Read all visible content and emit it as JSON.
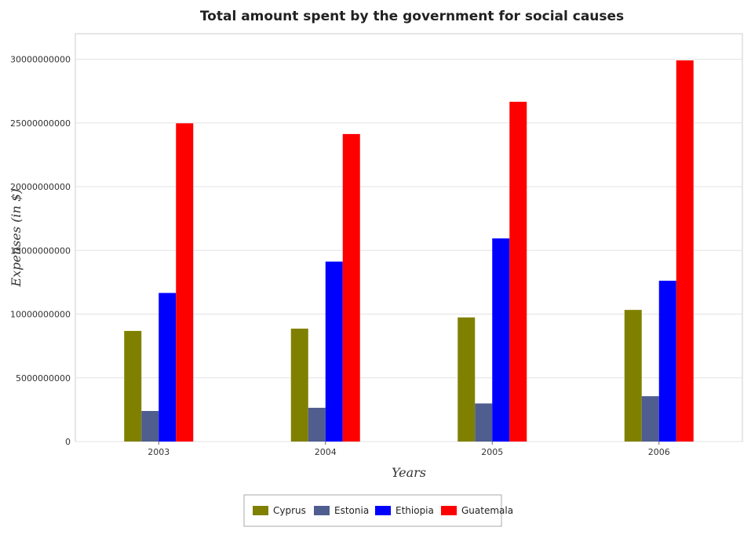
{
  "chart_data": {
    "type": "bar",
    "title": "Total amount spent by the government for social causes",
    "xlabel": "Years",
    "ylabel": "Expenses (in $)",
    "categories": [
      "2003",
      "2004",
      "2005",
      "2006"
    ],
    "ylim": [
      0,
      32000000000
    ],
    "yticks": [
      0,
      5000000000,
      10000000000,
      15000000000,
      20000000000,
      25000000000,
      30000000000
    ],
    "ytick_labels": [
      "0",
      "5000000000",
      "10000000000",
      "15000000000",
      "20000000000",
      "25000000000",
      "30000000000"
    ],
    "grid": true,
    "legend_position": "bottom-center",
    "series": [
      {
        "name": "Cyprus",
        "color": "#808000",
        "values": [
          8680000000,
          8860000000,
          9740000000,
          10330000000
        ]
      },
      {
        "name": "Estonia",
        "color": "#4f5e8f",
        "values": [
          2400000000,
          2650000000,
          2990000000,
          3560000000
        ]
      },
      {
        "name": "Ethiopia",
        "color": "#0000ff",
        "values": [
          11660000000,
          14120000000,
          15940000000,
          12620000000
        ]
      },
      {
        "name": "Guatemala",
        "color": "#ff0000",
        "values": [
          24970000000,
          24130000000,
          26660000000,
          29910000000
        ]
      }
    ]
  }
}
